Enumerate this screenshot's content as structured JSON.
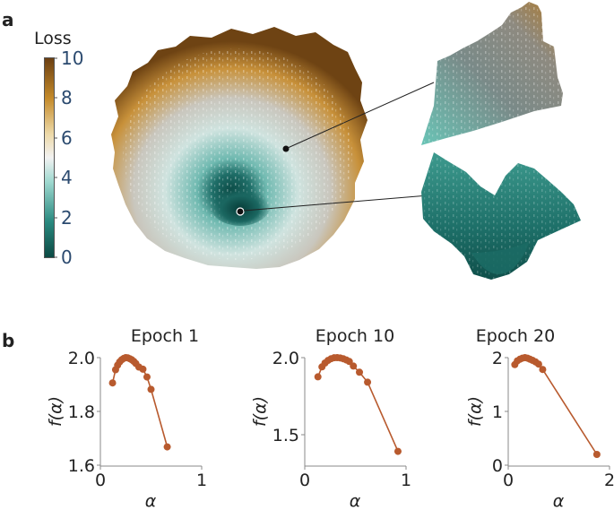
{
  "figure": {
    "panel_a_label": "a",
    "panel_b_label": "b"
  },
  "colorbar": {
    "title": "Loss",
    "ticks": [
      "0",
      "2",
      "4",
      "6",
      "8",
      "10"
    ],
    "colors": [
      "#0c4a44",
      "#2a8a80",
      "#9fd9d0",
      "#f2f2f2",
      "#edd9a8",
      "#c48a2a",
      "#6b3f12"
    ]
  },
  "chart_data": [
    {
      "type": "line",
      "title": "Epoch 1",
      "xlabel": "α",
      "ylabel": "f(α)",
      "xlim": [
        0,
        1
      ],
      "ylim": [
        1.6,
        2.0
      ],
      "xticks": [
        "0",
        "1"
      ],
      "yticks": [
        "1.6",
        "1.8",
        "2.0"
      ],
      "color": "#b85a2e",
      "x": [
        0.12,
        0.15,
        0.17,
        0.19,
        0.21,
        0.23,
        0.25,
        0.27,
        0.29,
        0.31,
        0.33,
        0.35,
        0.38,
        0.42,
        0.46,
        0.5,
        0.66
      ],
      "y": [
        1.906,
        1.955,
        1.972,
        1.984,
        1.992,
        1.997,
        2.0,
        1.999,
        1.996,
        1.992,
        1.986,
        1.978,
        1.965,
        1.957,
        1.928,
        1.882,
        1.668
      ]
    },
    {
      "type": "line",
      "title": "Epoch 10",
      "xlabel": "α",
      "ylabel": "f(α)",
      "xlim": [
        0,
        1
      ],
      "ylim": [
        1.3,
        2.0
      ],
      "xticks": [
        "0",
        "1"
      ],
      "yticks": [
        "1.5",
        "2.0"
      ],
      "color": "#b85a2e",
      "x": [
        0.13,
        0.17,
        0.2,
        0.23,
        0.26,
        0.29,
        0.32,
        0.35,
        0.38,
        0.41,
        0.44,
        0.48,
        0.54,
        0.62,
        0.92
      ],
      "y": [
        1.875,
        1.94,
        1.965,
        1.982,
        1.993,
        1.999,
        2.0,
        1.998,
        1.993,
        1.985,
        1.975,
        1.945,
        1.905,
        1.84,
        1.39
      ]
    },
    {
      "type": "line",
      "title": "Epoch 20",
      "xlabel": "α",
      "ylabel": "f(α)",
      "xlim": [
        0,
        2
      ],
      "ylim": [
        0,
        2
      ],
      "xticks": [
        "0",
        "2"
      ],
      "yticks": [
        "0",
        "1",
        "2"
      ],
      "color": "#b85a2e",
      "x": [
        0.13,
        0.18,
        0.23,
        0.28,
        0.33,
        0.38,
        0.43,
        0.48,
        0.54,
        0.6,
        0.68,
        1.75
      ],
      "y": [
        1.87,
        1.94,
        1.97,
        1.99,
        2.0,
        1.99,
        1.97,
        1.95,
        1.92,
        1.88,
        1.78,
        0.2
      ]
    }
  ]
}
